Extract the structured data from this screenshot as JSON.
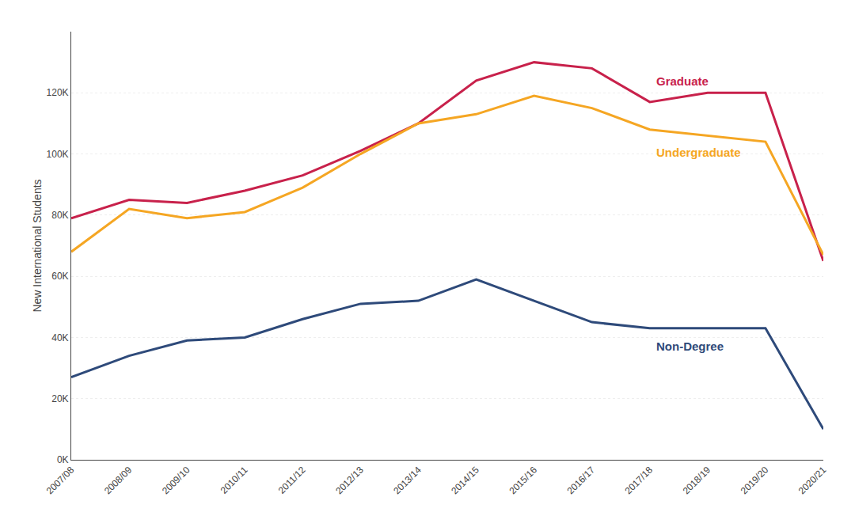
{
  "chart_data": {
    "type": "line",
    "y_label": "New International Students",
    "categories": [
      "2007/08",
      "2008/09",
      "2009/10",
      "2010/11",
      "2011/12",
      "2012/13",
      "2013/14",
      "2014/15",
      "2015/16",
      "2016/17",
      "2017/18",
      "2018/19",
      "2019/20",
      "2020/21"
    ],
    "series": [
      {
        "name": "Graduate",
        "color": "#C8214B",
        "values": [
          79000,
          85000,
          84000,
          88000,
          93000,
          101000,
          110000,
          124000,
          130000,
          128000,
          117000,
          120000,
          120000,
          65000
        ]
      },
      {
        "name": "Undergraduate",
        "color": "#F5A623",
        "values": [
          68000,
          82000,
          79000,
          81000,
          89000,
          100000,
          110000,
          113000,
          119000,
          115000,
          108000,
          106000,
          104000,
          67000
        ]
      },
      {
        "name": "Non-Degree",
        "color": "#2E4A7A",
        "values": [
          27000,
          34000,
          39000,
          40000,
          46000,
          51000,
          52000,
          59000,
          52000,
          45000,
          43000,
          43000,
          43000,
          10000
        ]
      }
    ],
    "ylim": [
      0,
      140000
    ],
    "yticks": [
      {
        "value": 0,
        "label": "0K"
      },
      {
        "value": 20000,
        "label": "20K"
      },
      {
        "value": 40000,
        "label": "40K"
      },
      {
        "value": 60000,
        "label": "60K"
      },
      {
        "value": 80000,
        "label": "80K"
      },
      {
        "value": 100000,
        "label": "100K"
      },
      {
        "value": 120000,
        "label": "120K"
      }
    ],
    "grid": true
  }
}
